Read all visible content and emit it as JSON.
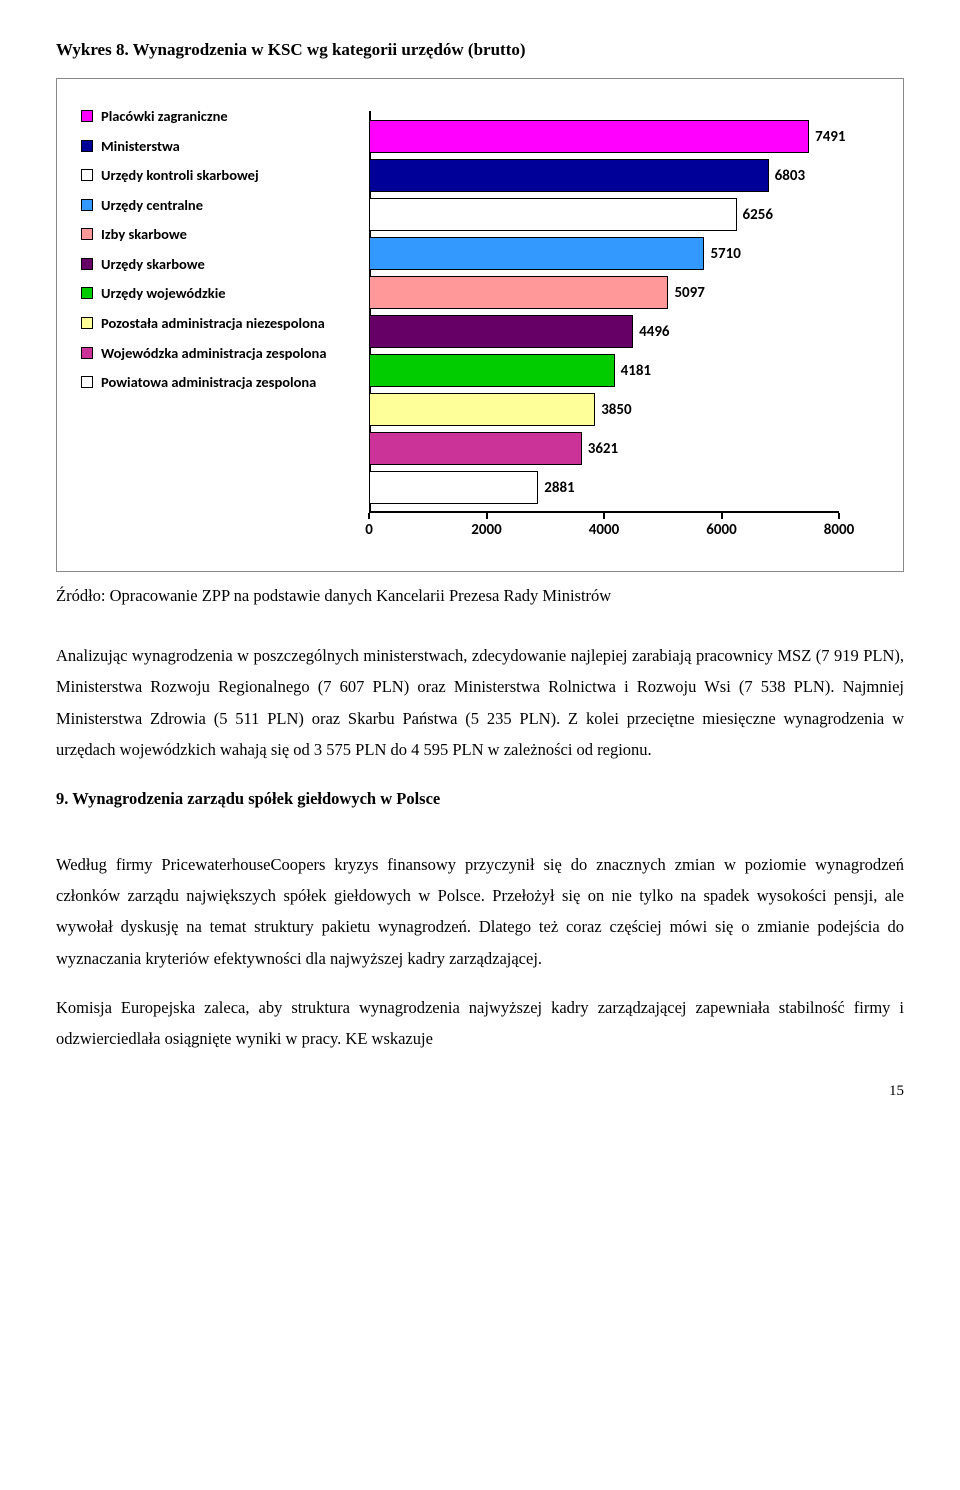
{
  "caption": "Wykres 8. Wynagrodzenia w KSC wg kategorii urzędów (brutto)",
  "chart": {
    "xmax": 8000,
    "x_ticks": [
      0,
      2000,
      4000,
      6000,
      8000
    ],
    "tick_fontsize": 15,
    "label_fontsize": 15,
    "legend_fontsize": 14.5,
    "background": "#ffffff",
    "series": [
      {
        "label": "Placówki zagraniczne",
        "value": 7491,
        "color": "#ff00ff"
      },
      {
        "label": "Ministerstwa",
        "value": 6803,
        "color": "#000099"
      },
      {
        "label": "Urzędy kontroli  skarbowej",
        "value": 6256,
        "color": "#ffffff"
      },
      {
        "label": "Urzędy centralne",
        "value": 5710,
        "color": "#3399ff"
      },
      {
        "label": "Izby skarbowe",
        "value": 5097,
        "color": "#ff9999"
      },
      {
        "label": "Urzędy skarbowe",
        "value": 4496,
        "color": "#660066"
      },
      {
        "label": "Urzędy wojewódzkie",
        "value": 4181,
        "color": "#00cc00"
      },
      {
        "label": "Pozostała administracja niezespolona",
        "value": 3850,
        "color": "#ffff99"
      },
      {
        "label": "Wojewódzka administracja zespolona",
        "value": 3621,
        "color": "#cc3399"
      },
      {
        "label": "Powiatowa administracja zespolona",
        "value": 2881,
        "color": "#ffffff"
      }
    ]
  },
  "source": "Źródło: Opracowanie ZPP na podstawie danych Kancelarii Prezesa Rady Ministrów",
  "para1": "Analizując wynagrodzenia w poszczególnych ministerstwach, zdecydowanie najlepiej zarabiają pracownicy MSZ (7 919 PLN), Ministerstwa Rozwoju Regionalnego (7 607 PLN) oraz Ministerstwa Rolnictwa i Rozwoju Wsi (7 538 PLN). Najmniej Ministerstwa Zdrowia (5 511 PLN) oraz Skarbu Państwa (5 235 PLN).  Z kolei przeciętne miesięczne wynagrodzenia w urzędach wojewódzkich wahają się od 3 575 PLN do 4 595 PLN w zależności od regionu.",
  "section_head": "9. Wynagrodzenia zarządu spółek giełdowych w Polsce",
  "para2": "Według firmy PricewaterhouseCoopers kryzys finansowy przyczynił się do znacznych zmian w poziomie wynagrodzeń członków zarządu największych spółek giełdowych w Polsce. Przełożył się on nie tylko na spadek wysokości pensji, ale wywołał dyskusję na temat struktury pakietu wynagrodzeń. Dlatego też coraz częściej mówi się o zmianie podejścia do wyznaczania kryteriów efektywności dla najwyższej kadry zarządzającej.",
  "para3": "Komisja Europejska zaleca, aby struktura wynagrodzenia najwyższej kadry zarządzającej zapewniała stabilność firmy i odzwierciedlała osiągnięte wyniki w pracy. KE wskazuje",
  "page_number": "15"
}
